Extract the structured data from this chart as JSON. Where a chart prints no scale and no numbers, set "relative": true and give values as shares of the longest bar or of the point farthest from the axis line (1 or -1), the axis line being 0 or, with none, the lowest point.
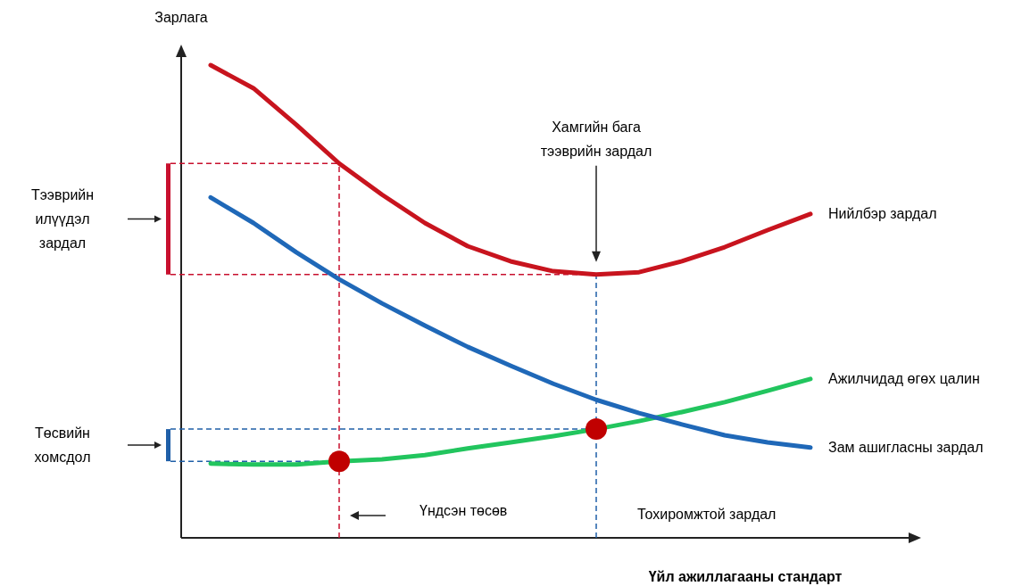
{
  "chart_data": {
    "type": "line",
    "relative": true,
    "ylabel": "Зарлага",
    "xlabel": "Үйл ажиллагааны стандарт",
    "legend": false,
    "line_style": "solid",
    "categories": [
      null,
      null,
      null,
      null,
      null,
      null,
      null,
      null,
      null,
      null,
      null,
      null,
      null,
      null,
      null
    ],
    "series": [
      {
        "name": "Нийлбэр зардал",
        "color": "#c8141e",
        "values": [
          1.0,
          0.951,
          0.874,
          0.792,
          0.726,
          0.666,
          0.617,
          0.585,
          0.564,
          0.557,
          0.562,
          0.585,
          0.615,
          0.651,
          0.685
        ]
      },
      {
        "name": "Ажилчидад өгөх цалин",
        "color": "#22c55e",
        "values": [
          0.157,
          0.155,
          0.155,
          0.162,
          0.166,
          0.175,
          0.189,
          0.202,
          0.215,
          0.23,
          0.247,
          0.266,
          0.287,
          0.311,
          0.336
        ]
      },
      {
        "name": "Зам ашигласны зардал",
        "color": "#1f68b8",
        "values": [
          0.72,
          0.666,
          0.604,
          0.547,
          0.496,
          0.449,
          0.404,
          0.364,
          0.326,
          0.292,
          0.264,
          0.24,
          0.217,
          0.202,
          0.191
        ]
      }
    ],
    "ref_lines": [
      {
        "axis": "y",
        "value": 0.792,
        "color": "#c8102e",
        "line_style": "dashed"
      },
      {
        "axis": "y",
        "value": 0.557,
        "color": "#c8102e",
        "line_style": "dashed"
      },
      {
        "axis": "y",
        "value": 0.23,
        "color": "#1f5fa8",
        "line_style": "dashed"
      },
      {
        "axis": "y",
        "value": 0.162,
        "color": "#1f5fa8",
        "line_style": "dashed"
      }
    ],
    "annotations": [
      "Хамгийн бага тээврийн зардал",
      "Үндсэн төсөв",
      "Тохиромжтой зардал",
      "Тээврийн илүүдэл зардал",
      "Төсвийн хомсдол"
    ]
  }
}
